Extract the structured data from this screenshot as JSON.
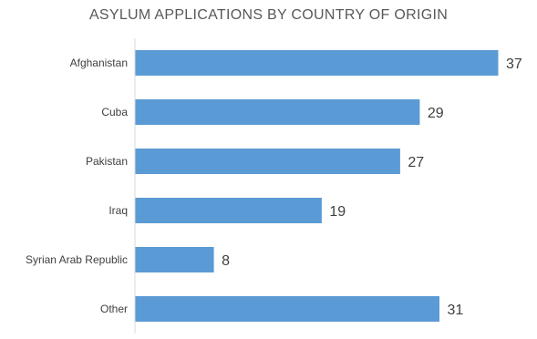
{
  "chart_data": {
    "type": "bar",
    "orientation": "horizontal",
    "title": "ASYLUM APPLICATIONS BY COUNTRY OF ORIGIN",
    "categories": [
      "Afghanistan",
      "Cuba",
      "Pakistan",
      "Iraq",
      "Syrian Arab Republic",
      "Other"
    ],
    "values": [
      37,
      29,
      27,
      19,
      8,
      31
    ],
    "xlim": [
      0,
      40
    ],
    "grid": false,
    "legend": "none",
    "bar_color": "#5B9BD5",
    "axis_color": "#D9D9D9",
    "data_labels": true
  }
}
